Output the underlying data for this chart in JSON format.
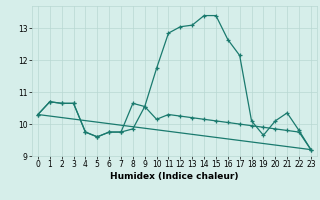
{
  "xlabel": "Humidex (Indice chaleur)",
  "background_color": "#d6eeea",
  "grid_color": "#b8d8d2",
  "line_color": "#1a7a6e",
  "xlim": [
    -0.5,
    23.5
  ],
  "ylim": [
    9.0,
    13.7
  ],
  "yticks": [
    9,
    10,
    11,
    12,
    13
  ],
  "xticks": [
    0,
    1,
    2,
    3,
    4,
    5,
    6,
    7,
    8,
    9,
    10,
    11,
    12,
    13,
    14,
    15,
    16,
    17,
    18,
    19,
    20,
    21,
    22,
    23
  ],
  "line1_x": [
    0,
    1,
    2,
    3,
    4,
    5,
    6,
    7,
    8,
    9,
    10,
    11,
    12,
    13,
    14,
    15,
    16,
    17,
    18,
    19,
    20,
    21,
    22,
    23
  ],
  "line1_y": [
    10.3,
    10.7,
    10.65,
    10.65,
    9.75,
    9.6,
    9.75,
    9.75,
    9.85,
    10.55,
    11.75,
    12.85,
    13.05,
    13.1,
    13.4,
    13.4,
    12.65,
    12.15,
    10.1,
    9.65,
    10.1,
    10.35,
    9.8,
    9.2
  ],
  "line2_x": [
    0,
    1,
    2,
    3,
    4,
    5,
    6,
    7,
    8,
    9,
    10,
    11,
    12,
    13,
    14,
    15,
    16,
    17,
    18,
    19,
    20,
    21,
    22,
    23
  ],
  "line2_y": [
    10.3,
    10.7,
    10.65,
    10.65,
    9.75,
    9.6,
    9.75,
    9.75,
    10.65,
    10.55,
    10.15,
    10.3,
    10.25,
    10.2,
    10.15,
    10.1,
    10.05,
    10.0,
    9.95,
    9.9,
    9.85,
    9.8,
    9.75,
    9.2
  ],
  "line3_x": [
    0,
    23
  ],
  "line3_y": [
    10.3,
    9.2
  ],
  "xlabel_fontsize": 6.5,
  "tick_fontsize": 5.5,
  "linewidth": 0.9,
  "markersize": 3.0
}
